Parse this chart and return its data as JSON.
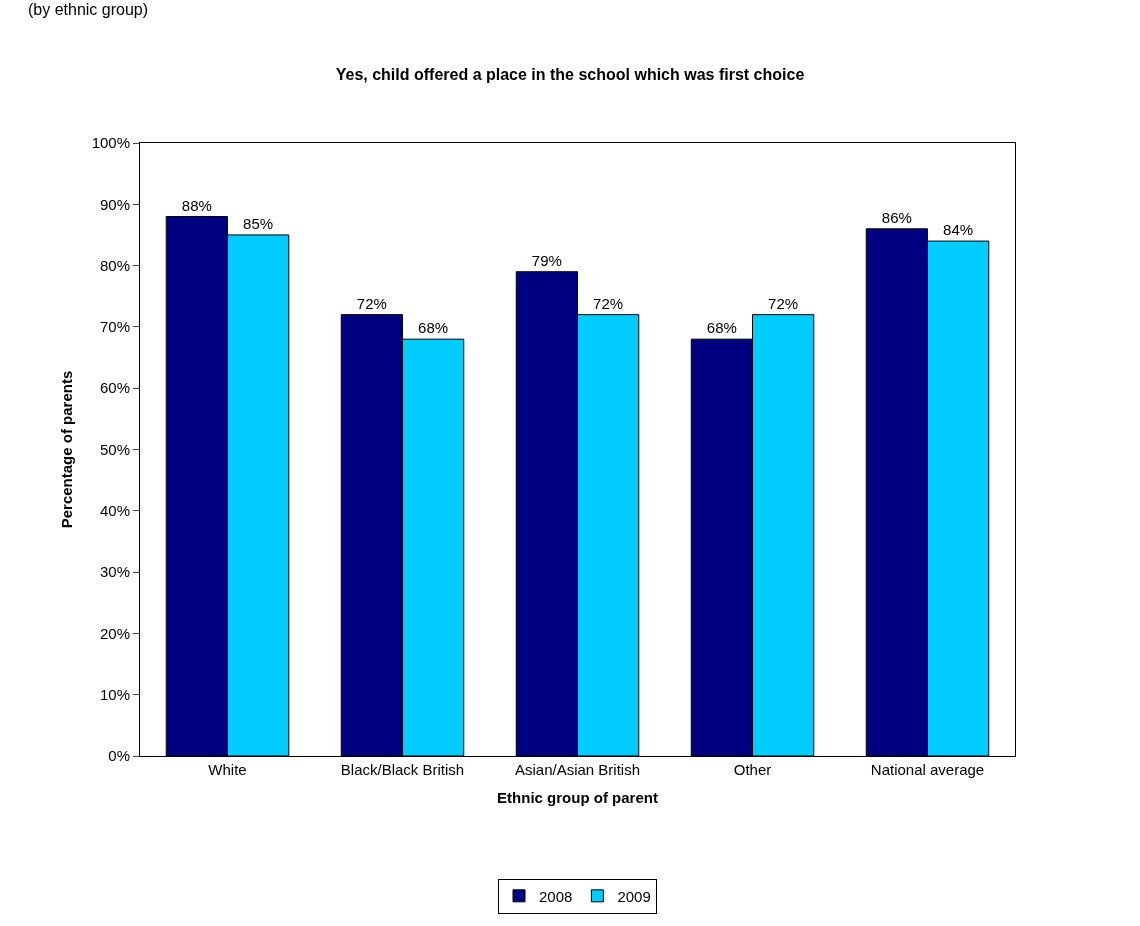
{
  "chart_data": {
    "type": "bar",
    "title": "Yes, child offered a place in the school which was first choice",
    "subtitle": "(by ethnic group)",
    "xlabel": "Ethnic group of parent",
    "ylabel": "Percentage of parents",
    "categories": [
      "White",
      "Black/Black British",
      "Asian/Asian British",
      "Other",
      "National average"
    ],
    "series": [
      {
        "name": "2008",
        "color": "#000080",
        "values": [
          88,
          72,
          79,
          68,
          86
        ],
        "value_labels": [
          "88%",
          "72%",
          "79%",
          "68%",
          "86%"
        ]
      },
      {
        "name": "2009",
        "color": "#00ccff",
        "values": [
          85,
          68,
          72,
          72,
          84
        ],
        "value_labels": [
          "85%",
          "68%",
          "72%",
          "72%",
          "84%"
        ]
      }
    ],
    "ylim": [
      0,
      100
    ],
    "yticks": [
      {
        "value": 0,
        "label": "0%"
      },
      {
        "value": 10,
        "label": "10%"
      },
      {
        "value": 20,
        "label": "20%"
      },
      {
        "value": 30,
        "label": "30%"
      },
      {
        "value": 40,
        "label": "40%"
      },
      {
        "value": 50,
        "label": "50%"
      },
      {
        "value": 60,
        "label": "60%"
      },
      {
        "value": 70,
        "label": "70%"
      },
      {
        "value": 80,
        "label": "80%"
      },
      {
        "value": 90,
        "label": "90%"
      },
      {
        "value": 100,
        "label": "100%"
      }
    ],
    "grid": false,
    "legend": "bottom"
  }
}
